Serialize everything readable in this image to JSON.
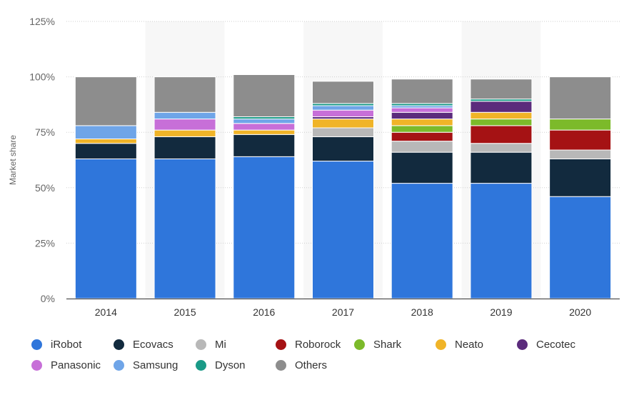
{
  "chart_data": {
    "type": "bar",
    "stacked": true,
    "categories": [
      "2014",
      "2015",
      "2016",
      "2017",
      "2018",
      "2019",
      "2020"
    ],
    "ylabel": "Market share",
    "xlabel": "",
    "ylim": [
      0,
      125
    ],
    "yticks": [
      0,
      25,
      50,
      75,
      100,
      125
    ],
    "ytick_labels": [
      "0%",
      "25%",
      "50%",
      "75%",
      "100%",
      "125%"
    ],
    "grid": true,
    "legend_position": "bottom",
    "series": [
      {
        "name": "iRobot",
        "color": "#2f76db",
        "values": [
          63,
          63,
          64,
          62,
          52,
          52,
          46
        ]
      },
      {
        "name": "Ecovacs",
        "color": "#122a3e",
        "values": [
          7,
          10,
          10,
          11,
          14,
          14,
          17
        ]
      },
      {
        "name": "Mi",
        "color": "#b8b8b8",
        "values": [
          0,
          0,
          0,
          4,
          5,
          4,
          4
        ]
      },
      {
        "name": "Roborock",
        "color": "#a51214",
        "values": [
          0,
          0,
          0,
          0,
          4,
          8,
          9
        ]
      },
      {
        "name": "Shark",
        "color": "#7cba2a",
        "values": [
          0,
          0,
          0,
          0,
          3,
          3,
          5
        ]
      },
      {
        "name": "Neato",
        "color": "#f0b428",
        "values": [
          2,
          3,
          2,
          4,
          3,
          3,
          0
        ]
      },
      {
        "name": "Cecotec",
        "color": "#5b2b7c",
        "values": [
          0,
          0,
          0,
          1,
          3,
          5,
          0
        ]
      },
      {
        "name": "Panasonic",
        "color": "#c76fd8",
        "values": [
          0,
          5,
          3,
          3,
          2,
          0,
          0
        ]
      },
      {
        "name": "Samsung",
        "color": "#6fa5e8",
        "values": [
          6,
          3,
          2,
          2,
          1,
          0,
          0
        ]
      },
      {
        "name": "Dyson",
        "color": "#1a9a87",
        "values": [
          0,
          0,
          1,
          1,
          1,
          1,
          0
        ]
      },
      {
        "name": "Others",
        "color": "#8d8d8d",
        "values": [
          22,
          16,
          19,
          10,
          11,
          9,
          19
        ]
      }
    ]
  }
}
